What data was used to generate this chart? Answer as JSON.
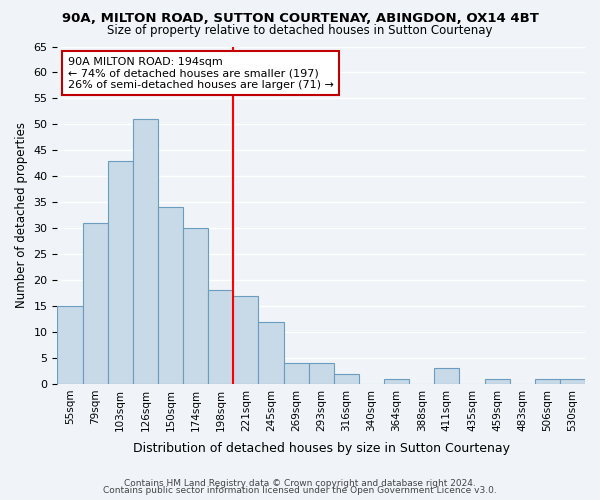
{
  "title1": "90A, MILTON ROAD, SUTTON COURTENAY, ABINGDON, OX14 4BT",
  "title2": "Size of property relative to detached houses in Sutton Courtenay",
  "xlabel": "Distribution of detached houses by size in Sutton Courtenay",
  "ylabel": "Number of detached properties",
  "bar_labels": [
    "55sqm",
    "79sqm",
    "103sqm",
    "126sqm",
    "150sqm",
    "174sqm",
    "198sqm",
    "221sqm",
    "245sqm",
    "269sqm",
    "293sqm",
    "316sqm",
    "340sqm",
    "364sqm",
    "388sqm",
    "411sqm",
    "435sqm",
    "459sqm",
    "483sqm",
    "506sqm",
    "530sqm"
  ],
  "bar_values": [
    15,
    31,
    43,
    51,
    34,
    30,
    18,
    17,
    12,
    4,
    4,
    2,
    0,
    1,
    0,
    3,
    0,
    1,
    0,
    1,
    1
  ],
  "bar_color": "#c8d9e8",
  "bar_edge_color": "#6a9dbf",
  "vline_x": 6.5,
  "vline_color": "red",
  "annotation_title": "90A MILTON ROAD: 194sqm",
  "annotation_line1": "← 74% of detached houses are smaller (197)",
  "annotation_line2": "26% of semi-detached houses are larger (71) →",
  "box_color": "white",
  "box_edge_color": "#c00000",
  "ylim": [
    0,
    65
  ],
  "yticks": [
    0,
    5,
    10,
    15,
    20,
    25,
    30,
    35,
    40,
    45,
    50,
    55,
    60,
    65
  ],
  "footer1": "Contains HM Land Registry data © Crown copyright and database right 2024.",
  "footer2": "Contains public sector information licensed under the Open Government Licence v3.0.",
  "bg_color": "#f0f4f8",
  "plot_bg_color": "#f0f4f8"
}
